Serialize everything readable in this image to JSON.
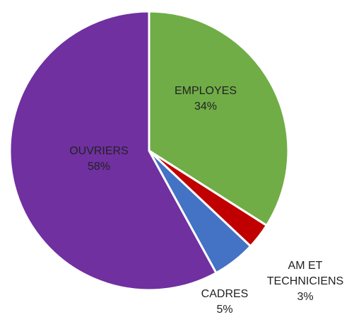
{
  "chart_data": {
    "type": "pie",
    "categories": [
      "EMPLOYES",
      "AM ET TECHNICIENS",
      "CADRES",
      "OUVRIERS"
    ],
    "values": [
      34,
      3,
      5,
      58
    ],
    "value_labels": [
      "34%",
      "3%",
      "5%",
      "58%"
    ],
    "colors": [
      "#70ad47",
      "#c00000",
      "#4472c4",
      "#7030a0"
    ]
  }
}
